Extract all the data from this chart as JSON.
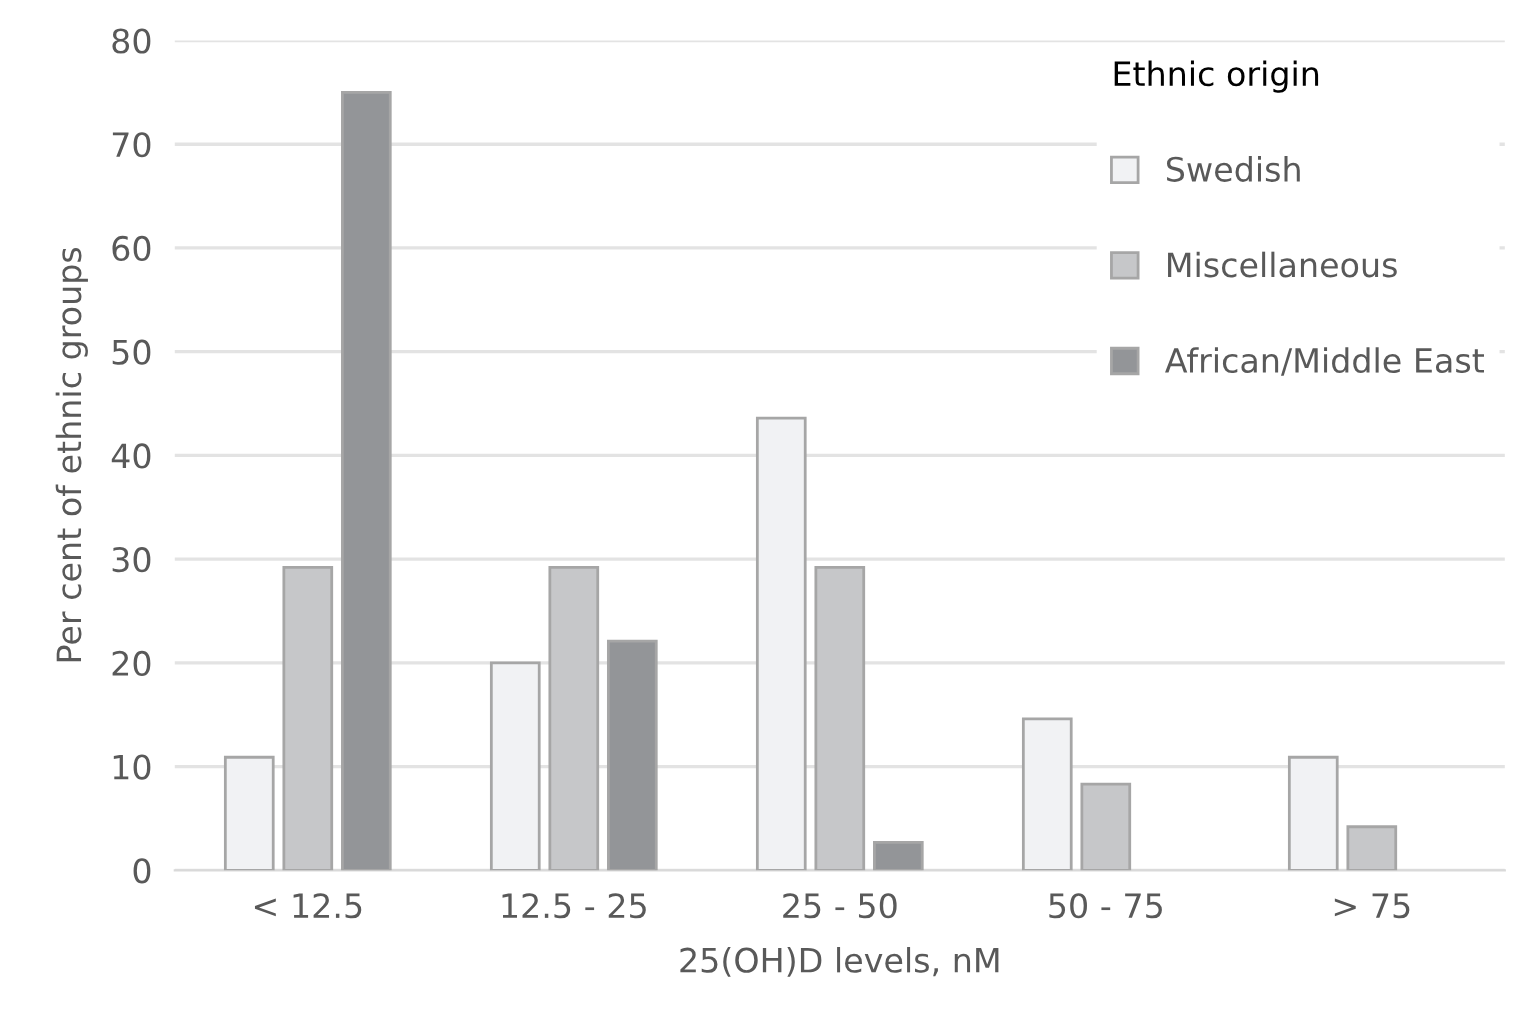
{
  "chart_data": {
    "type": "bar",
    "xlabel": "25(OH)D levels, nM",
    "ylabel": "Per cent of ethnic groups",
    "legend_title": "Ethnic origin",
    "categories": [
      "< 12.5",
      "12.5 - 25",
      "25 - 50",
      "50 - 75",
      "> 75"
    ],
    "series": [
      {
        "name": "Swedish",
        "color": "#f1f2f4",
        "values": [
          10.9,
          20,
          43.6,
          14.6,
          10.9
        ]
      },
      {
        "name": "Miscellaneous",
        "color": "#c6c7c9",
        "values": [
          29.2,
          29.2,
          29.2,
          8.3,
          4.2
        ]
      },
      {
        "name": "African/Middle East",
        "color": "#939598",
        "values": [
          75,
          22.1,
          2.7,
          null,
          null
        ]
      }
    ],
    "ylim": [
      0,
      80
    ],
    "yticks": [
      0,
      10,
      20,
      30,
      40,
      50,
      60,
      70,
      80
    ],
    "grid": "y",
    "legend": "top right"
  }
}
